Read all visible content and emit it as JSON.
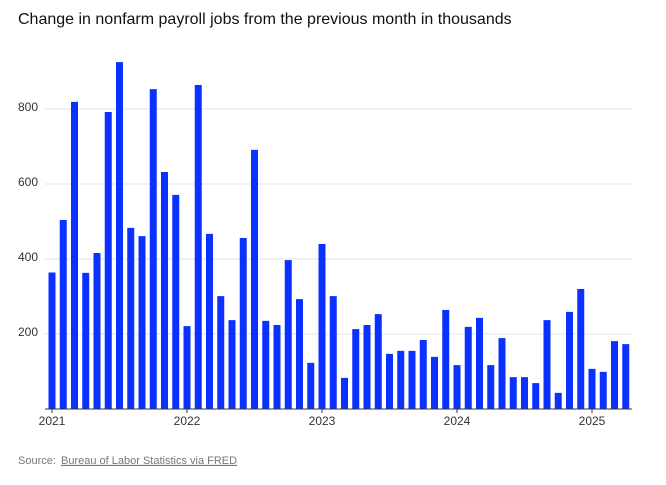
{
  "chart_data": {
    "type": "bar",
    "title": "Change in nonfarm payroll jobs from the previous month in thousands",
    "categories": [
      "2021",
      null,
      null,
      null,
      null,
      null,
      null,
      null,
      null,
      null,
      null,
      null,
      "2022",
      null,
      null,
      null,
      null,
      null,
      null,
      null,
      null,
      null,
      null,
      null,
      "2023",
      null,
      null,
      null,
      null,
      null,
      null,
      null,
      null,
      null,
      null,
      null,
      "2024",
      null,
      null,
      null,
      null,
      null,
      null,
      null,
      null,
      null,
      null,
      null,
      "2025",
      null,
      null,
      null
    ],
    "values": [
      364,
      504,
      819,
      363,
      416,
      792,
      925,
      483,
      461,
      853,
      632,
      571,
      221,
      864,
      467,
      301,
      237,
      456,
      691,
      235,
      224,
      397,
      293,
      123,
      440,
      301,
      83,
      213,
      224,
      253,
      147,
      155,
      155,
      184,
      139,
      264,
      117,
      219,
      243,
      117,
      189,
      85,
      85,
      69,
      237,
      43,
      259,
      320,
      107,
      99,
      181,
      173
    ],
    "color": "#0a31ff",
    "ylim": [
      0,
      940
    ],
    "yticks": [
      200,
      400,
      600,
      800
    ],
    "grid": true,
    "source_label": "Source:",
    "source_link": "Bureau of Labor Statistics via FRED"
  }
}
